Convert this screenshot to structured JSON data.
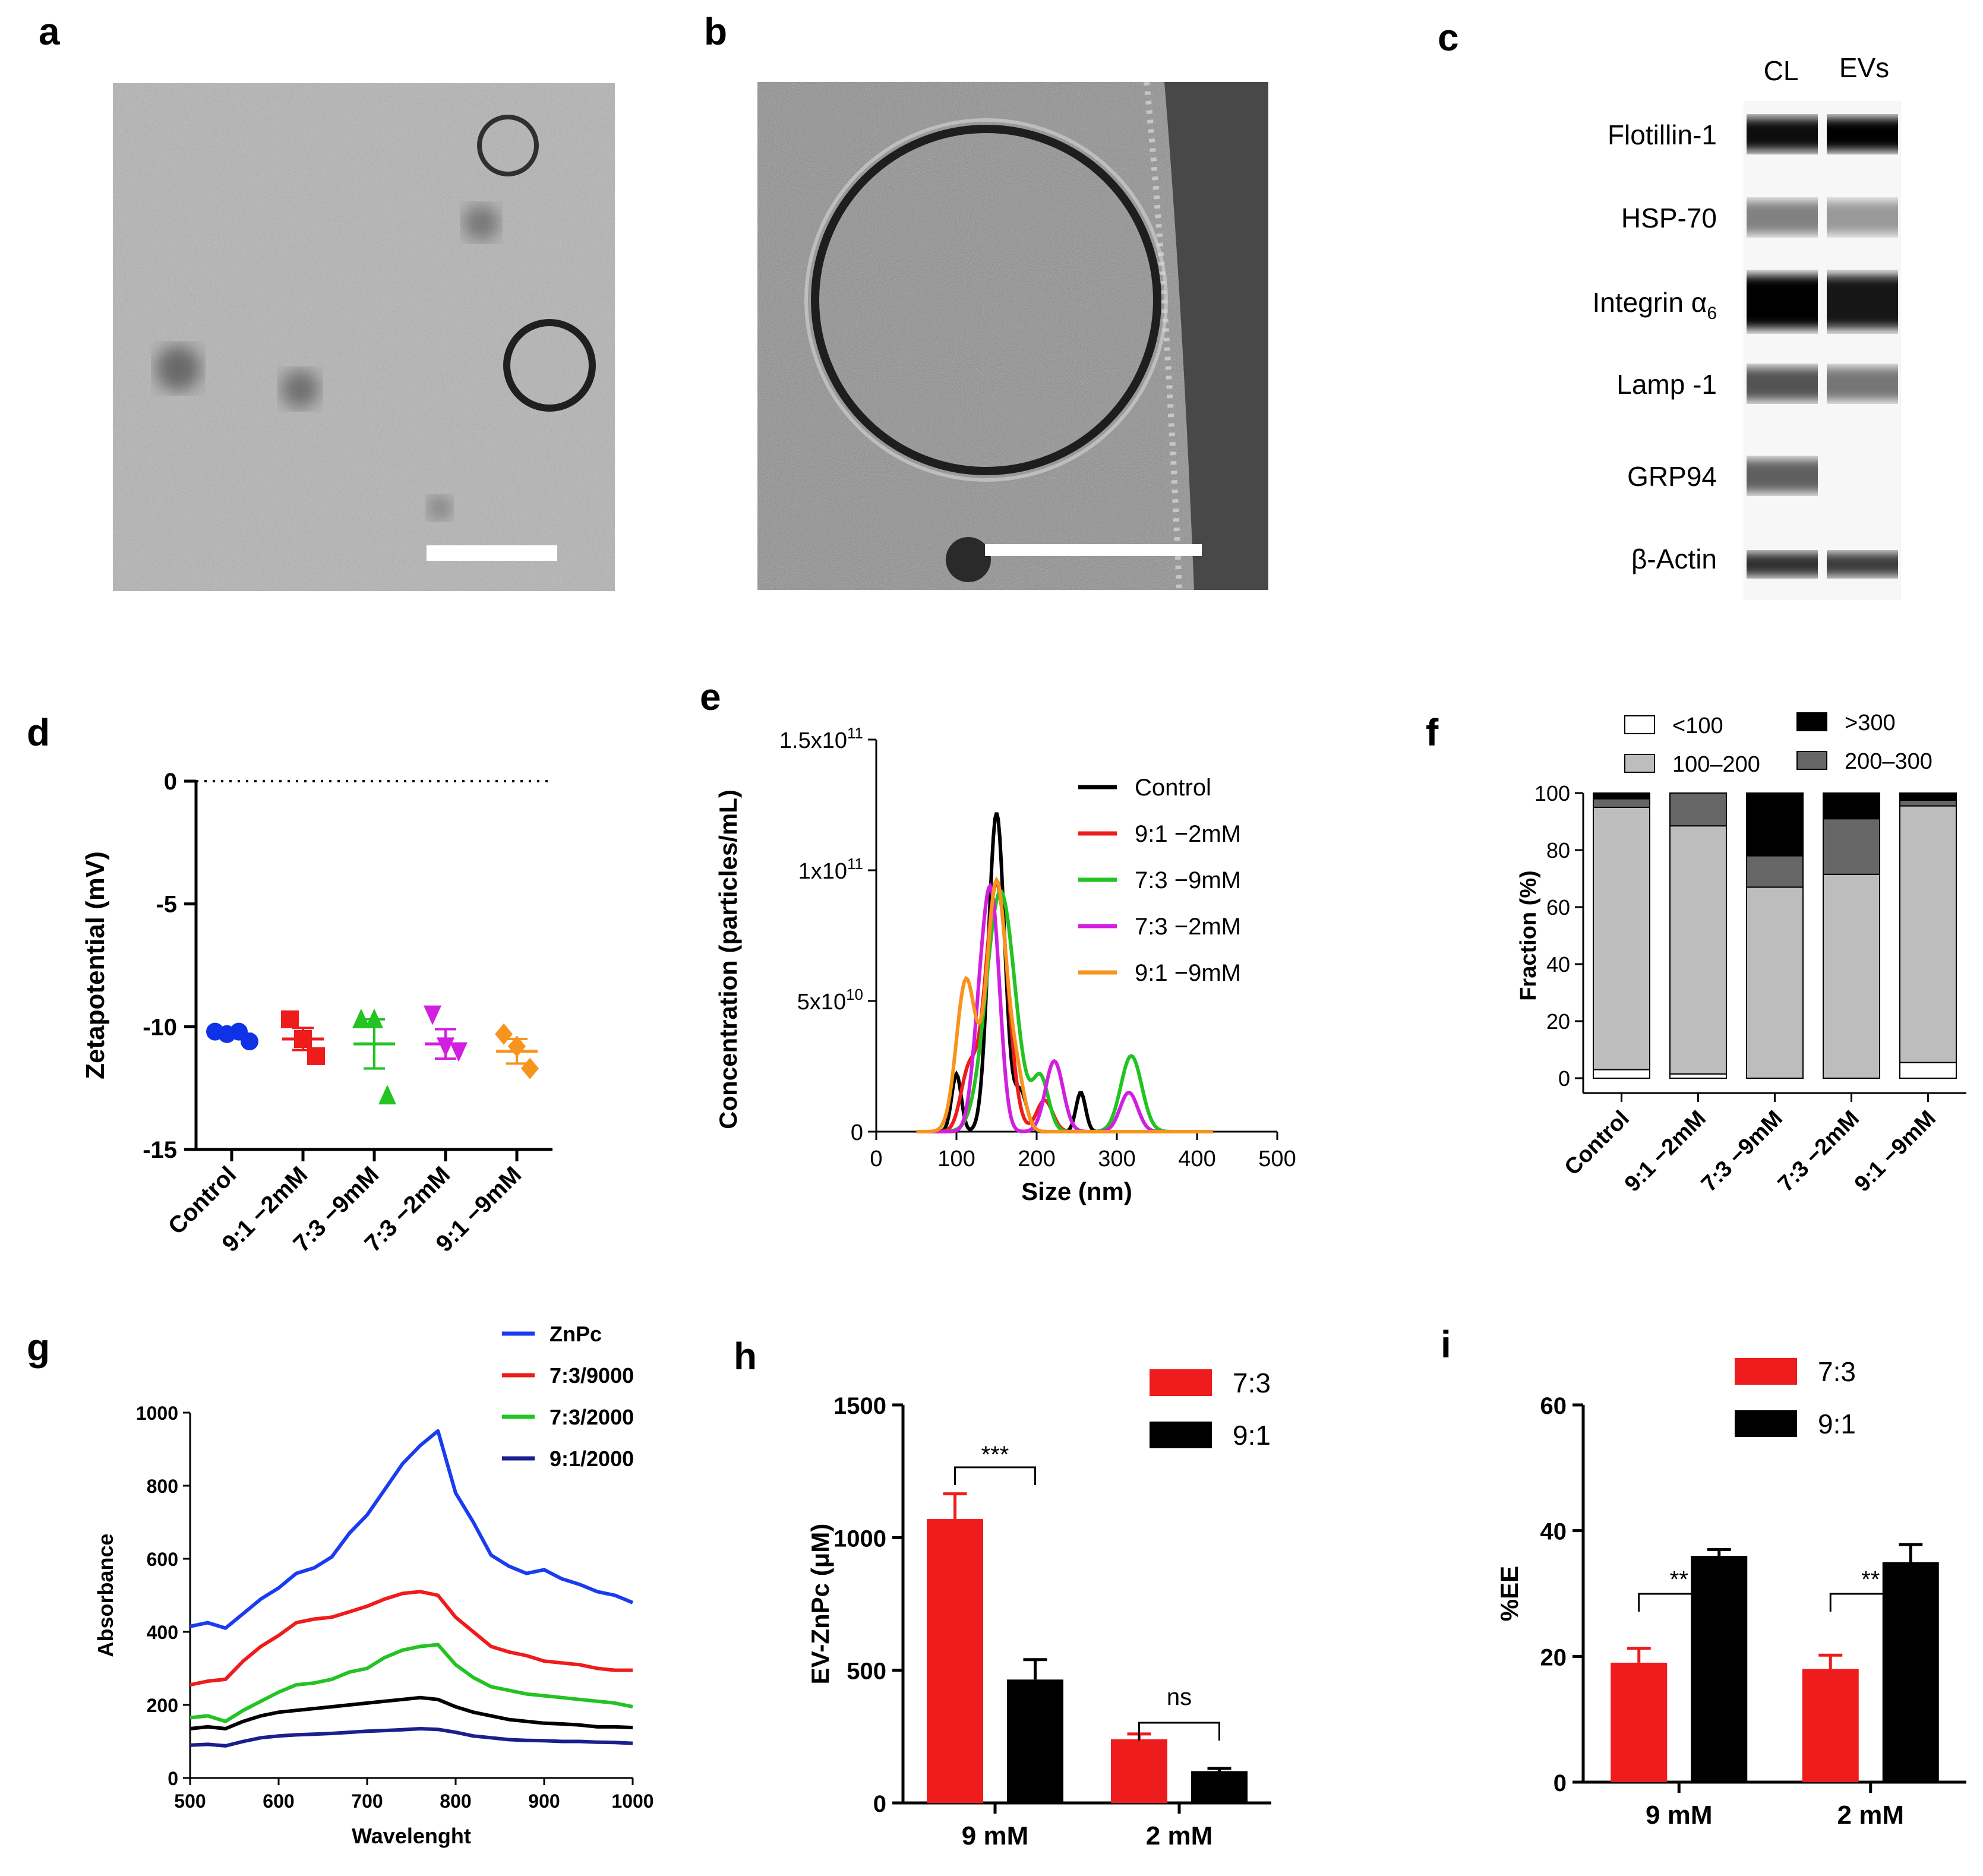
{
  "panel_letters": {
    "a": "a",
    "b": "b",
    "c": "c",
    "d": "d",
    "e": "e",
    "f": "f",
    "g": "g",
    "h": "h",
    "i": "i"
  },
  "colors": {
    "red": "#ee1c1c",
    "black": "#000000",
    "green": "#22c322",
    "magenta": "#d21ee0",
    "orange": "#f7941d",
    "blue": "#1a3cf0",
    "navy": "#1a1f8c",
    "d_blue": "#1032e6",
    "gray_light": "#bdbdbd",
    "gray_mid": "#a8a8a8",
    "gray_dark": "#666666"
  },
  "panel_c": {
    "lanes": [
      "CL",
      "EVs"
    ],
    "rows": [
      {
        "label": "Flotillin-1",
        "cl": 0.95,
        "ev": 1.0
      },
      {
        "label": "HSP-70",
        "cl": 0.45,
        "ev": 0.35
      },
      {
        "label": "Integrin α",
        "sub": "6",
        "cl": 1.0,
        "ev": 0.9
      },
      {
        "label": "Lamp -1",
        "cl": 0.65,
        "ev": 0.5
      },
      {
        "label": "GRP94",
        "cl": 0.6,
        "ev": 0.0
      },
      {
        "label": "β-Actin",
        "cl": 0.8,
        "ev": 0.75
      }
    ]
  },
  "chart_data": [
    {
      "panel": "d",
      "type": "scatter",
      "ylabel": "Zetapotential (mV)",
      "ylim": [
        -15,
        0
      ],
      "yticks": [
        "0",
        "-5",
        "-10",
        "-15"
      ],
      "categories": [
        "Control",
        "9:1 −2mM",
        "7:3 −9mM",
        "7:3 −2mM",
        "9:1 −9mM"
      ],
      "series": [
        {
          "marker": "circle",
          "points": [
            -10.2,
            -10.3,
            -10.2,
            -10.6
          ],
          "mean": -10.3,
          "sem": 0.1
        },
        {
          "marker": "square",
          "points": [
            -9.7,
            -10.5,
            -11.2
          ],
          "mean": -10.5,
          "sem": 0.45
        },
        {
          "marker": "triangle",
          "points": [
            -9.7,
            -9.7,
            -12.8
          ],
          "mean": -10.7,
          "sem": 1.0
        },
        {
          "marker": "triangle-down",
          "points": [
            -9.5,
            -10.8,
            -11.0
          ],
          "mean": -10.7,
          "sem": 0.6
        },
        {
          "marker": "diamond",
          "points": [
            -10.3,
            -10.8,
            -11.7
          ],
          "mean": -11.0,
          "sem": 0.5
        }
      ]
    },
    {
      "panel": "e",
      "type": "line",
      "xlabel": "Size (nm)",
      "ylabel": "Concentration (particles/mL)",
      "xlim": [
        0,
        500
      ],
      "ylim": [
        0,
        150000000000.0
      ],
      "xticks": [
        "0",
        "100",
        "200",
        "300",
        "400",
        "500"
      ],
      "yticks": [
        {
          "base": "0",
          "exp": ""
        },
        {
          "base": "5x10",
          "exp": "10"
        },
        {
          "base": "1x10",
          "exp": "11"
        },
        {
          "base": "1.5x10",
          "exp": "11"
        }
      ],
      "series": [
        {
          "name": "Control",
          "peaks": [
            [
              100,
              22000000000.0,
              6
            ],
            [
              150,
              122000000000.0,
              10
            ],
            [
              180,
              15000000000.0,
              8
            ],
            [
              255,
              15000000000.0,
              6
            ]
          ]
        },
        {
          "name": "9:1 −2mM",
          "peaks": [
            [
              115,
              22000000000.0,
              10
            ],
            [
              150,
              95000000000.0,
              14
            ],
            [
              210,
              12000000000.0,
              10
            ]
          ]
        },
        {
          "name": "7:3 −9mM",
          "peaks": [
            [
              155,
              92000000000.0,
              18
            ],
            [
              205,
              20000000000.0,
              10
            ],
            [
              318,
              29000000000.0,
              13
            ]
          ]
        },
        {
          "name": "7:3 −2mM",
          "peaks": [
            [
              130,
              40000000000.0,
              10
            ],
            [
              145,
              78000000000.0,
              10
            ],
            [
              222,
              27000000000.0,
              11
            ],
            [
              315,
              15000000000.0,
              11
            ]
          ]
        },
        {
          "name": "9:1 −9mM",
          "peaks": [
            [
              112,
              58000000000.0,
              12
            ],
            [
              150,
              95000000000.0,
              12
            ],
            [
              175,
              20000000000.0,
              10
            ]
          ]
        }
      ]
    },
    {
      "panel": "f",
      "type": "bar",
      "stacked": true,
      "ylabel": "Fraction (%)",
      "ylim": [
        0,
        100
      ],
      "yticks": [
        "0",
        "20",
        "40",
        "60",
        "80",
        "100"
      ],
      "categories": [
        "Control",
        "9:1 −2mM",
        "7:3 −9mM",
        "7:3 −2mM",
        "9:1 −9mM"
      ],
      "series": [
        {
          "name": "<100",
          "values": [
            3,
            1.5,
            0,
            0,
            5.5
          ]
        },
        {
          "name": "100–200",
          "values": [
            92,
            87,
            67,
            71.5,
            90
          ]
        },
        {
          "name": "200–300",
          "values": [
            3,
            11.5,
            11,
            19.5,
            2
          ]
        },
        {
          "name": ">300",
          "values": [
            2,
            0,
            22,
            9,
            2.5
          ]
        }
      ],
      "legend_order": [
        "<100",
        ">300",
        "100–200",
        "200–300"
      ]
    },
    {
      "panel": "g",
      "type": "line",
      "xlabel": "Wavelenght",
      "ylabel": "Absorbance",
      "xlim": [
        500,
        1000
      ],
      "ylim": [
        0,
        1000
      ],
      "xticks": [
        "500",
        "600",
        "700",
        "800",
        "900",
        "1000"
      ],
      "yticks": [
        "0",
        "200",
        "400",
        "600",
        "800",
        "1000"
      ],
      "series": [
        {
          "name": "ZnPc",
          "x": [
            500,
            520,
            540,
            560,
            580,
            600,
            620,
            640,
            660,
            680,
            700,
            720,
            740,
            760,
            780,
            800,
            820,
            840,
            860,
            880,
            900,
            920,
            940,
            960,
            980,
            1000
          ],
          "y": [
            415,
            425,
            410,
            450,
            490,
            520,
            560,
            575,
            605,
            670,
            720,
            790,
            860,
            910,
            950,
            780,
            700,
            610,
            580,
            560,
            570,
            545,
            530,
            510,
            500,
            480
          ]
        },
        {
          "name": "7:3/9000",
          "x": [
            500,
            520,
            540,
            560,
            580,
            600,
            620,
            640,
            660,
            680,
            700,
            720,
            740,
            760,
            780,
            800,
            820,
            840,
            860,
            880,
            900,
            920,
            940,
            960,
            980,
            1000
          ],
          "y": [
            255,
            265,
            270,
            320,
            360,
            390,
            425,
            435,
            440,
            455,
            470,
            490,
            505,
            510,
            500,
            440,
            400,
            360,
            345,
            335,
            320,
            315,
            310,
            300,
            295,
            295
          ]
        },
        {
          "name": "7:3/2000",
          "x": [
            500,
            520,
            540,
            560,
            580,
            600,
            620,
            640,
            660,
            680,
            700,
            720,
            740,
            760,
            780,
            800,
            820,
            840,
            860,
            880,
            900,
            920,
            940,
            960,
            980,
            1000
          ],
          "y": [
            165,
            170,
            155,
            185,
            210,
            235,
            255,
            260,
            270,
            290,
            300,
            330,
            350,
            360,
            365,
            310,
            275,
            250,
            240,
            230,
            225,
            220,
            215,
            210,
            205,
            195
          ]
        },
        {
          "name": "",
          "x": [
            500,
            520,
            540,
            560,
            580,
            600,
            620,
            640,
            660,
            680,
            700,
            720,
            740,
            760,
            780,
            800,
            820,
            840,
            860,
            880,
            900,
            920,
            940,
            960,
            980,
            1000
          ],
          "y": [
            135,
            140,
            135,
            155,
            170,
            180,
            185,
            190,
            195,
            200,
            205,
            210,
            215,
            220,
            215,
            195,
            180,
            170,
            160,
            155,
            150,
            148,
            145,
            140,
            140,
            138
          ]
        },
        {
          "name": "9:1/2000",
          "x": [
            500,
            520,
            540,
            560,
            580,
            600,
            620,
            640,
            660,
            680,
            700,
            720,
            740,
            760,
            780,
            800,
            820,
            840,
            860,
            880,
            900,
            920,
            940,
            960,
            980,
            1000
          ],
          "y": [
            90,
            92,
            88,
            100,
            110,
            115,
            118,
            120,
            122,
            125,
            128,
            130,
            132,
            135,
            133,
            125,
            115,
            110,
            105,
            103,
            102,
            100,
            100,
            98,
            97,
            95
          ]
        }
      ]
    },
    {
      "panel": "h",
      "type": "bar",
      "ylabel": "EV-ZnPc (μM)",
      "ylim": [
        0,
        1500
      ],
      "yticks": [
        "0",
        "500",
        "1000",
        "1500"
      ],
      "categories": [
        "9 mM",
        "2 mM"
      ],
      "series": [
        {
          "name": "7:3",
          "values": [
            1070,
            240
          ],
          "errors": [
            95,
            20
          ]
        },
        {
          "name": "9:1",
          "values": [
            465,
            120
          ],
          "errors": [
            75,
            10
          ]
        }
      ],
      "annotations": [
        "***",
        "ns"
      ]
    },
    {
      "panel": "i",
      "type": "bar",
      "ylabel": "%EE",
      "ylim": [
        0,
        60
      ],
      "yticks": [
        "0",
        "20",
        "40",
        "60"
      ],
      "categories": [
        "9 mM",
        "2 mM"
      ],
      "series": [
        {
          "name": "7:3",
          "values": [
            19,
            18
          ],
          "errors": [
            2.3,
            2.2
          ]
        },
        {
          "name": "9:1",
          "values": [
            36,
            35
          ],
          "errors": [
            1.0,
            2.8
          ]
        }
      ],
      "annotations": [
        "**",
        "**"
      ]
    }
  ]
}
